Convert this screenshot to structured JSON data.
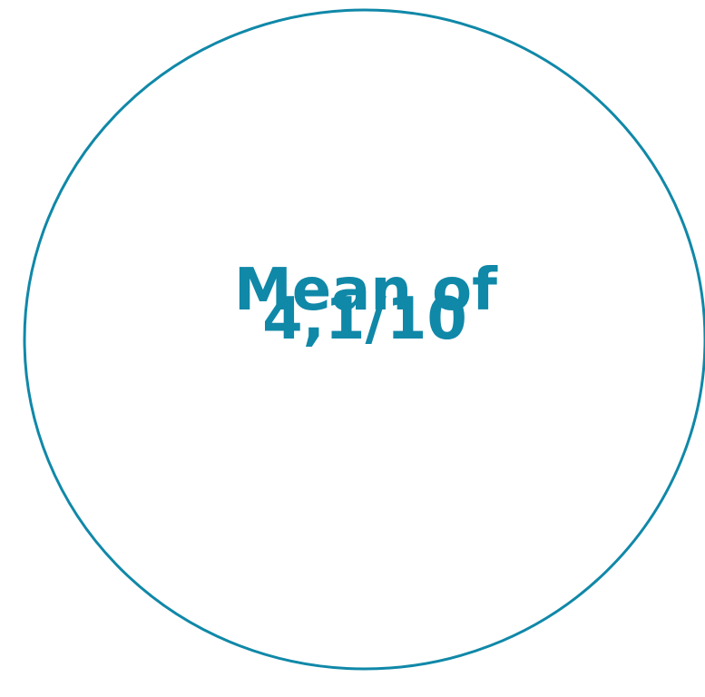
{
  "text": {
    "line1": "Mean of",
    "line2": "4,1/10"
  }
}
